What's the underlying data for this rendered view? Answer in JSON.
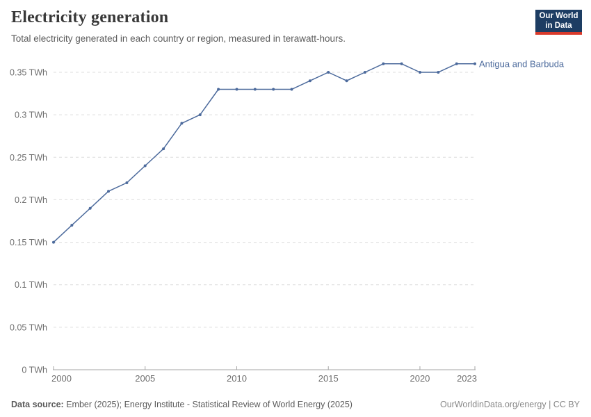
{
  "header": {
    "title": "Electricity generation",
    "subtitle": "Total electricity generated in each country or region, measured in terawatt-hours.",
    "logo": {
      "line1": "Our World",
      "line2": "in Data"
    }
  },
  "chart_data": {
    "type": "line",
    "title": "Electricity generation",
    "unit": "TWh",
    "xlabel": "",
    "ylabel": "",
    "xlim": [
      2000,
      2023
    ],
    "ylim": [
      0,
      0.35
    ],
    "grid": "horizontal-dashed",
    "legend_position": "end-of-line-label",
    "series": [
      {
        "name": "Antigua and Barbuda",
        "color": "#4c6a9c",
        "x": [
          2000,
          2001,
          2002,
          2003,
          2004,
          2005,
          2006,
          2007,
          2008,
          2009,
          2010,
          2011,
          2012,
          2013,
          2014,
          2015,
          2016,
          2017,
          2018,
          2019,
          2020,
          2021,
          2022,
          2023
        ],
        "values": [
          0.15,
          0.17,
          0.19,
          0.21,
          0.22,
          0.24,
          0.26,
          0.29,
          0.3,
          0.33,
          0.33,
          0.33,
          0.33,
          0.33,
          0.34,
          0.35,
          0.34,
          0.35,
          0.36,
          0.36,
          0.35,
          0.35,
          0.36,
          0.36
        ]
      }
    ],
    "y_ticks": [
      {
        "value": 0,
        "label": "0 TWh"
      },
      {
        "value": 0.05,
        "label": "0.05 TWh"
      },
      {
        "value": 0.1,
        "label": "0.1 TWh"
      },
      {
        "value": 0.15,
        "label": "0.15 TWh"
      },
      {
        "value": 0.2,
        "label": "0.2 TWh"
      },
      {
        "value": 0.25,
        "label": "0.25 TWh"
      },
      {
        "value": 0.3,
        "label": "0.3 TWh"
      },
      {
        "value": 0.35,
        "label": "0.35 TWh"
      }
    ],
    "x_ticks": [
      {
        "value": 2000,
        "label": "2000",
        "align": "start"
      },
      {
        "value": 2005,
        "label": "2005",
        "align": "middle"
      },
      {
        "value": 2010,
        "label": "2010",
        "align": "middle"
      },
      {
        "value": 2015,
        "label": "2015",
        "align": "middle"
      },
      {
        "value": 2020,
        "label": "2020",
        "align": "middle"
      },
      {
        "value": 2023,
        "label": "2023",
        "align": "end"
      }
    ]
  },
  "footer": {
    "sources_label": "Data source:",
    "sources": " Ember (2025); Energy Institute - Statistical Review of World Energy (2025)",
    "attribution": "OurWorldinData.org/energy | CC BY"
  },
  "colors": {
    "series": "#4c6a9c",
    "gridline": "#dcdcdc",
    "axis": "#a5a5a5",
    "tick_label": "#6e6e6e",
    "logo_bg": "#1d3d63",
    "logo_accent": "#d93a2b"
  }
}
